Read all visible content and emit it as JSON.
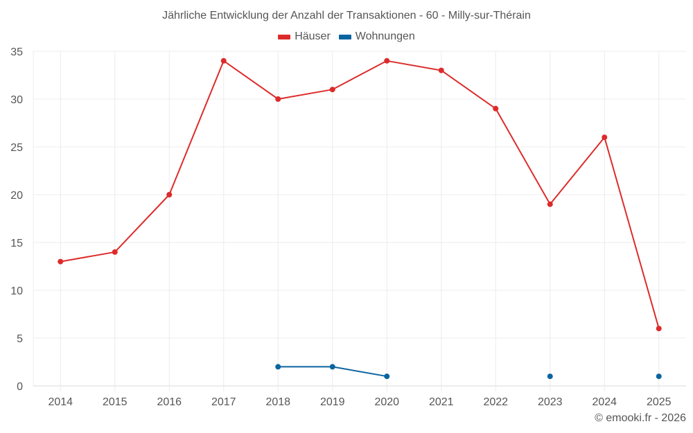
{
  "chart_data": {
    "type": "line",
    "title": "Jährliche Entwicklung der Anzahl der Transaktionen - 60 - Milly-sur-Thérain",
    "xlabel": "",
    "ylabel": "",
    "categories": [
      "2014",
      "2015",
      "2016",
      "2017",
      "2018",
      "2019",
      "2020",
      "2021",
      "2022",
      "2023",
      "2024",
      "2025"
    ],
    "series": [
      {
        "name": "Häuser",
        "color": "#dd2b2b",
        "values": [
          13,
          14,
          20,
          34,
          30,
          31,
          34,
          33,
          29,
          19,
          26,
          6
        ]
      },
      {
        "name": "Wohnungen",
        "color": "#0b64a0",
        "values": [
          null,
          null,
          null,
          null,
          2,
          2,
          1,
          null,
          null,
          1,
          null,
          1
        ]
      }
    ],
    "ylim": [
      0,
      35
    ],
    "yticks": [
      0,
      5,
      10,
      15,
      20,
      25,
      30,
      35
    ],
    "grid": true,
    "legend_position": "top"
  },
  "credit": "© emooki.fr - 2026"
}
